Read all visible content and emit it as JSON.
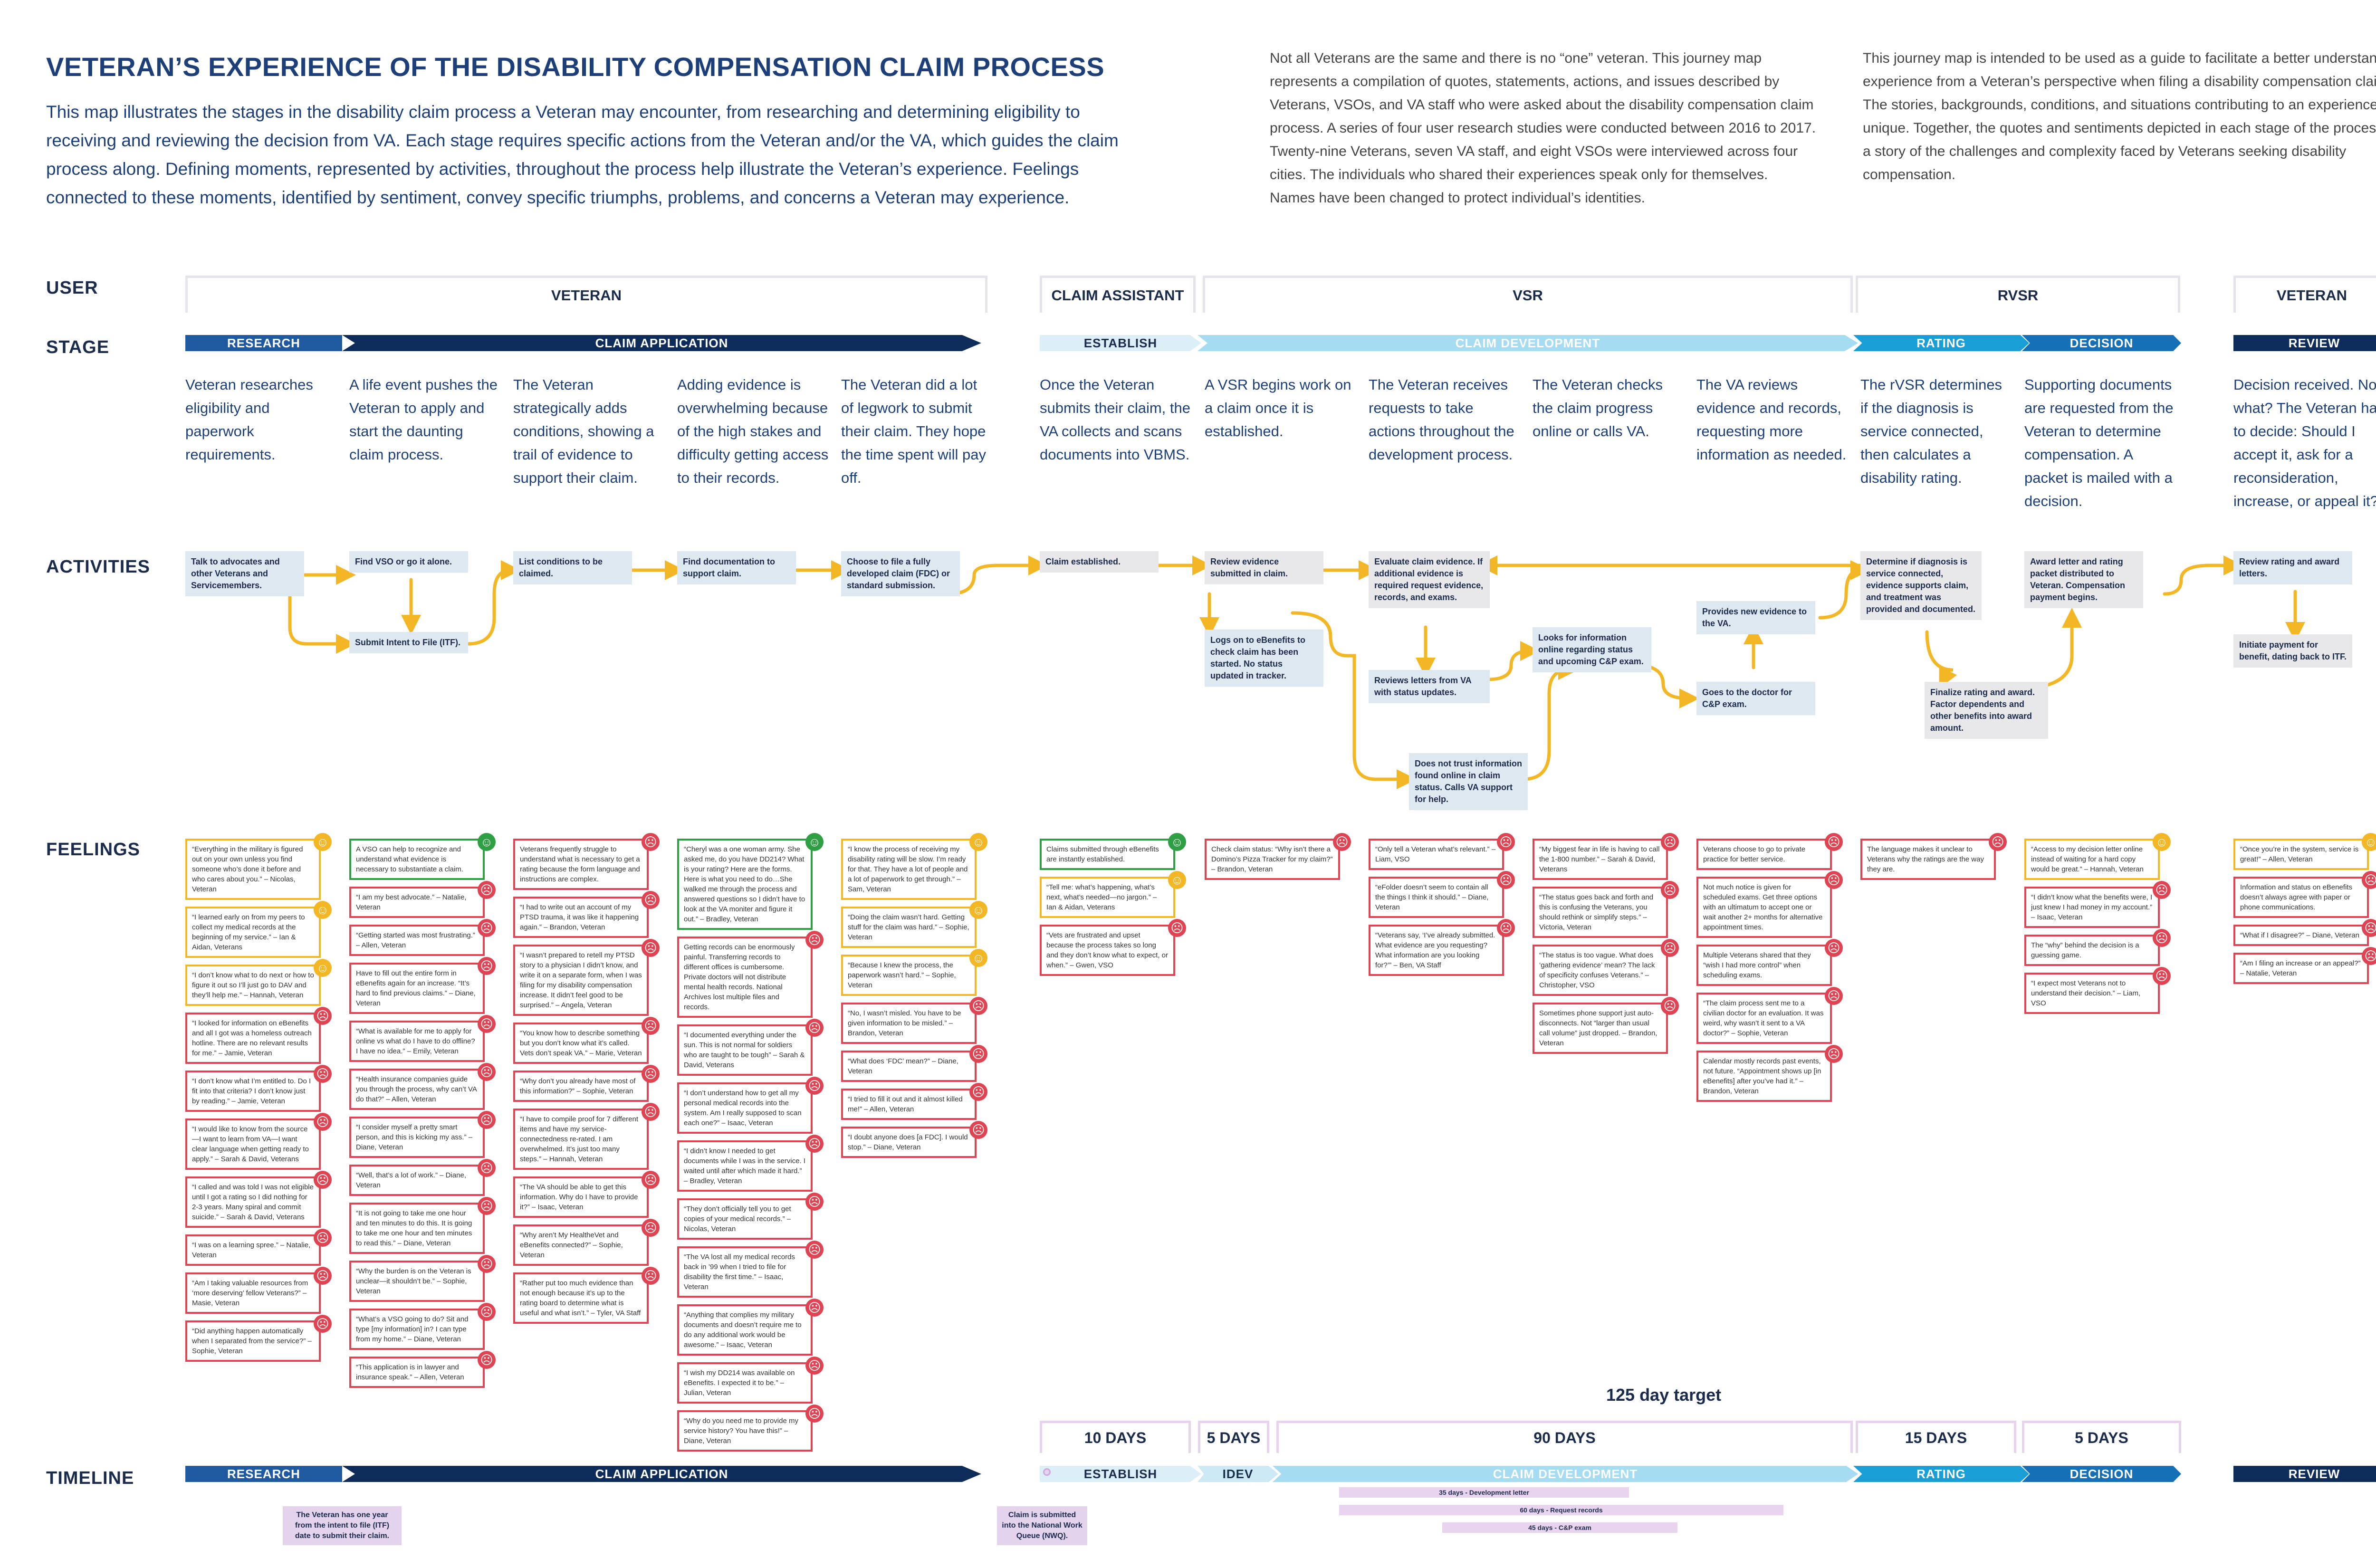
{
  "header": {
    "title": "VETERAN’S EXPERIENCE OF THE DISABILITY COMPENSATION CLAIM PROCESS",
    "intro": "This map illustrates the stages in the disability claim process a Veteran may encounter, from researching and determining eligibility to receiving and reviewing the decision from VA. Each stage requires specific actions from the Veteran and/or the VA, which guides the claim process along. Defining moments, represented by activities, throughout the process help illustrate the Veteran’s experience. Feelings connected to these moments, identified by sentiment, convey specific triumphs, problems, and concerns a Veteran may experience.",
    "note1": "Not all Veterans are the same and there is no “one” veteran. This journey map represents a compilation of quotes, statements, actions, and issues described by Veterans, VSOs, and VA staff who were asked about the disability compensation claim process. A series of four user research studies were conducted between 2016 to 2017. Twenty-nine Veterans, seven VA staff, and eight VSOs were interviewed across four cities. The individuals who shared their experiences speak only for themselves. Names have been changed to protect individual’s identities.",
    "note2": "This journey map is intended to be used as a guide to facilitate a better understand the experience from a Veteran’s perspective when filing a disability compensation claim. The stories, backgrounds, conditions, and situations contributing to an experience are unique. Together, the quotes and sentiments depicted in each stage of the process tell a story of the challenges and complexity faced by Veterans seeking disability compensation."
  },
  "rows": {
    "user": "USER",
    "stage": "STAGE",
    "activities": "ACTIVITIES",
    "feelings": "FEELINGS",
    "timeline": "TIMELINE"
  },
  "users": [
    "VETERAN",
    "CLAIM ASSISTANT",
    "VSR",
    "RVSR",
    "VETERAN"
  ],
  "stages": [
    "RESEARCH",
    "CLAIM APPLICATION",
    "ESTABLISH",
    "CLAIM DEVELOPMENT",
    "RATING",
    "DECISION",
    "REVIEW"
  ],
  "colors": {
    "navy": "#0d2c5a",
    "blue": "#1f5aa0",
    "light": "#dceef8",
    "cyan": "#a6dcf2",
    "teal": "#1a9ed6",
    "green": "#2ea043",
    "red": "#e04352",
    "yellow": "#f3b624",
    "purple": "#e3d3ec"
  },
  "steps": [
    "Veteran researches eligibility and paperwork requirements.",
    "A life event pushes the Veteran to apply and start the daunting claim process.",
    "The Veteran strategically adds conditions, showing a trail of evidence to support their claim.",
    "Adding evidence is overwhelming because of the high stakes and difficulty getting access to their records.",
    "The Veteran did a lot of legwork to submit their claim. They hope the time spent will pay off.",
    "Once the Veteran submits their claim, the VA collects and scans documents into VBMS.",
    "A VSR begins work on a claim once it is established.",
    "The Veteran receives requests to take actions throughout the development process.",
    "The Veteran checks the claim progress online or calls VA.",
    "The VA reviews evidence and records, requesting more information as needed.",
    "The rVSR determines if the diagnosis is service connected, then calculates a disability rating.",
    "Supporting documents are requested from the Veteran to determine compensation. A packet is mailed with a decision.",
    "Decision received. Now what? The Veteran has to decide: Should I accept it, ask for a reconsideration, increase, or appeal it?"
  ],
  "activities": {
    "a1": "Talk to advocates and other Veterans and Servicemembers.",
    "a2": "Find VSO or go it alone.",
    "a3": "Submit Intent to File (ITF).",
    "a4": "List conditions to be claimed.",
    "a5": "Find documentation to support claim.",
    "a6": "Choose to file a fully developed claim (FDC) or standard submission.",
    "a7": "Claim established.",
    "a8": "Review evidence submitted in claim.",
    "a9": "Logs on to eBenefits to check claim has been started. No status updated in tracker.",
    "a10": "Evaluate claim evidence. If additional evidence is required request evidence, records, and exams.",
    "a11": "Reviews letters from VA with status updates.",
    "a12": "Does not trust information found online in claim status. Calls VA support for help.",
    "a13": "Looks for information online regarding status and upcoming C&P exam.",
    "a14": "Provides new evidence to the VA.",
    "a15": "Goes to the doctor for C&P exam.",
    "a16": "Determine if diagnosis is service connected, evidence supports claim, and treatment was provided and documented.",
    "a17": "Finalize rating and award. Factor dependents and other benefits into award amount.",
    "a18": "Award letter and rating packet distributed to Veteran. Compensation payment begins.",
    "a19": "Review rating and award letters.",
    "a20": "Initiate payment for benefit, dating back to ITF."
  },
  "feelings": {
    "c1": [
      {
        "s": "neutral",
        "t": "“Everything in the military is figured out on your own unless you find someone who’s done it before and who cares about you.” – Nicolas, Veteran"
      },
      {
        "s": "neutral",
        "t": "“I learned early on from my peers to collect my medical records at the beginning of my service.” – Ian & Aidan, Veterans"
      },
      {
        "s": "neutral",
        "t": "“I don’t know what to do next or how to figure it out so I’ll just go to DAV and they’ll help me.” – Hannah, Veteran"
      },
      {
        "s": "sad",
        "t": "“I looked for information on eBenefits and all I got was a homeless outreach hotline. There are no relevant results for me.” – Jamie, Veteran"
      },
      {
        "s": "sad",
        "t": "“I don’t know what I’m entitled to. Do I fit into that criteria? I don’t know just by reading.” – Jamie, Veteran"
      },
      {
        "s": "sad",
        "t": "“I would like to know from the source—I want to learn from VA—I want clear language when getting ready to apply.” – Sarah & David, Veterans"
      },
      {
        "s": "sad",
        "t": "“I called and was told I was not eligible until I got a rating so I did nothing for 2-3 years. Many spiral and commit suicide.” – Sarah & David, Veterans"
      },
      {
        "s": "sad",
        "t": "“I was on a learning spree.” – Natalie, Veteran"
      },
      {
        "s": "sad",
        "t": "“Am I taking valuable resources from ‘more deserving’ fellow Veterans?” – Masie, Veteran"
      },
      {
        "s": "sad",
        "t": "“Did anything happen automatically when I separated from the service?” – Sophie, Veteran"
      }
    ],
    "c2": [
      {
        "s": "happy",
        "t": "A VSO can help to recognize and understand what evidence is necessary to substantiate a claim."
      },
      {
        "s": "sad",
        "t": "“I am my best advocate.” – Natalie, Veteran"
      },
      {
        "s": "sad",
        "t": "“Getting started was most frustrating.” – Allen, Veteran"
      },
      {
        "s": "sad",
        "t": "Have to fill out the entire form in eBenefits again for an increase. “It’s hard to find previous claims.” – Diane, Veteran"
      },
      {
        "s": "sad",
        "t": "“What is available for me to apply for online vs what do I have to do offline? I have no idea.” – Emily, Veteran"
      },
      {
        "s": "sad",
        "t": "“Health insurance companies guide you through the process, why can’t VA do that?” – Allen, Veteran"
      },
      {
        "s": "sad",
        "t": "“I consider myself a pretty smart person, and this is kicking my ass.” – Diane, Veteran"
      },
      {
        "s": "sad",
        "t": "“Well, that’s a lot of work.” – Diane, Veteran"
      },
      {
        "s": "sad",
        "t": "“It is not going to take me one hour and ten minutes to do this. It is going to take me one hour and ten minutes to read this.” – Diane, Veteran"
      },
      {
        "s": "sad",
        "t": "“Why the burden is on the Veteran is unclear—it shouldn’t be.” – Sophie, Veteran"
      },
      {
        "s": "sad",
        "t": "“What’s a VSO going to do? Sit and type [my information] in? I can type from my home.” – Diane, Veteran"
      },
      {
        "s": "sad",
        "t": "“This application is in lawyer and insurance speak.” – Allen, Veteran"
      }
    ],
    "c3": [
      {
        "s": "sad",
        "t": "Veterans frequently struggle to understand what is necessary to get a rating because the form language and instructions are complex."
      },
      {
        "s": "sad",
        "t": "“I had to write out an account of my PTSD trauma, it was like it happening again.” – Brandon, Veteran"
      },
      {
        "s": "sad",
        "t": "“I wasn’t prepared to retell my PTSD story to a physician I didn’t know, and write it on a separate form, when I was filing for my disability compensation increase. It didn’t feel good to be surprised.” – Angela, Veteran"
      },
      {
        "s": "sad",
        "t": "“You know how to describe something but you don’t know what it’s called. Vets don’t speak VA.” – Marie, Veteran"
      },
      {
        "s": "sad",
        "t": "“Why don’t you already have most of this information?” – Sophie, Veteran"
      },
      {
        "s": "sad",
        "t": "“I have to compile proof for 7 different items and have my service-connectedness re-rated. I am overwhelmed. It’s just too many steps.” – Hannah, Veteran"
      },
      {
        "s": "sad",
        "t": "“The VA should be able to get this information. Why do I have to provide it?” – Isaac, Veteran"
      },
      {
        "s": "sad",
        "t": "“Why aren’t My HealtheVet and eBenefits connected?” – Sophie, Veteran"
      },
      {
        "s": "sad",
        "t": "“Rather put too much evidence than not enough because it’s up to the rating board to determine what is useful and what isn’t.” – Tyler, VA Staff"
      }
    ],
    "c4": [
      {
        "s": "happy",
        "t": "“Cheryl was a one woman army. She asked me, do you have DD214? What is your rating? Here are the forms. Here is what you need to do…She walked me through the process and answered questions so I didn’t have to look at the VA moniter and figure it out.” – Bradley, Veteran"
      },
      {
        "s": "sad",
        "t": "Getting records can be enormously painful. Transferring records to different offices is cumbersome. Private doctors will not distribute mental health records. National Archives lost multiple files and records."
      },
      {
        "s": "sad",
        "t": "“I documented everything under the sun. This is not normal for soldiers who are taught to be tough” – Sarah & David, Veterans"
      },
      {
        "s": "sad",
        "t": "“I don’t understand how to get all my personal medical records into the system. Am I really supposed to scan each one?” – Isaac, Veteran"
      },
      {
        "s": "sad",
        "t": "“I didn’t know I needed to get documents while I was in the service. I waited until after which made it hard.” – Bradley, Veteran"
      },
      {
        "s": "sad",
        "t": "“They don’t officially tell you to get copies of your medical records.” – Nicolas, Veteran"
      },
      {
        "s": "sad",
        "t": "“The VA lost all my medical records back in ’99 when I tried to file for disability the first time.” – Isaac, Veteran"
      },
      {
        "s": "sad",
        "t": "“Anything that complies my military documents and doesn’t require me to do any additional work would be awesome.” – Isaac, Veteran"
      },
      {
        "s": "sad",
        "t": "“I wish my DD214 was available on eBenefits. I expected it to be.” – Julian, Veteran"
      },
      {
        "s": "sad",
        "t": "“Why do you need me to provide my service history? You have this!” – Diane, Veteran"
      }
    ],
    "c5": [
      {
        "s": "neutral",
        "t": "“I know the process of receiving my disability rating will be slow. I’m ready for that. They have a lot of people and a lot of paperwork to get through.” – Sam, Veteran"
      },
      {
        "s": "neutral",
        "t": "“Doing the claim wasn’t hard. Getting stuff for the claim was hard.” – Sophie, Veteran"
      },
      {
        "s": "neutral",
        "t": "“Because I knew the process, the paperwork wasn’t hard.” – Sophie, Veteran"
      },
      {
        "s": "sad",
        "t": "“No, I wasn’t misled. You have to be given information to be misled.” – Brandon, Veteran"
      },
      {
        "s": "sad",
        "t": "“What does ‘FDC’ mean?” – Diane, Veteran"
      },
      {
        "s": "sad",
        "t": "“I tried to fill it out and it almost killed me!” – Allen, Veteran"
      },
      {
        "s": "sad",
        "t": "“I doubt anyone does [a FDC]. I would stop.” – Diane, Veteran"
      }
    ],
    "c6": [
      {
        "s": "happy",
        "t": "Claims submitted through eBenefits are instantly established."
      },
      {
        "s": "neutral",
        "t": "“Tell me: what’s happening, what’s next, what’s needed—no jargon.” – Ian & Aidan, Veterans"
      },
      {
        "s": "sad",
        "t": "“Vets are frustrated and upset because the process takes so long and they don’t know what to expect, or when.” – Gwen, VSO"
      }
    ],
    "c7": [
      {
        "s": "sad",
        "t": "Check claim status: “Why isn’t there a Domino’s Pizza Tracker for my claim?” – Brandon, Veteran"
      }
    ],
    "c8": [
      {
        "s": "sad",
        "t": "“Only tell a Veteran what’s relevant.” – Liam, VSO"
      },
      {
        "s": "sad",
        "t": "“eFolder doesn’t seem to contain all the things I think it should.” – Diane, Veteran"
      },
      {
        "s": "sad",
        "t": "“Veterans say, ‘I’ve already submitted. What evidence are you requesting? What information are you looking for?’” – Ben, VA Staff"
      }
    ],
    "c9": [
      {
        "s": "sad",
        "t": "“My biggest fear in life is having to call the 1-800 number.” – Sarah & David, Veterans"
      },
      {
        "s": "sad",
        "t": "“The status goes back and forth and this is confusing the Veterans, you should rethink or simplify steps.” – Victoria, Veteran"
      },
      {
        "s": "sad",
        "t": "“The status is too vague. What does ‘gathering evidence’ mean? The lack of specificity confuses Veterans.” – Christopher, VSO"
      },
      {
        "s": "sad",
        "t": "Sometimes phone support just auto-disconnects. Not “larger than usual call volume” just dropped. – Brandon, Veteran"
      }
    ],
    "c10": [
      {
        "s": "sad",
        "t": "Veterans choose to go to private practice for better service."
      },
      {
        "s": "sad",
        "t": "Not much notice is given for scheduled exams. Get three options with an ultimatum to accept one or wait another 2+ months for alternative appointment times."
      },
      {
        "s": "sad",
        "t": "Multiple Veterans shared that they “wish I had more control” when scheduling exams."
      },
      {
        "s": "sad",
        "t": "“The claim process sent me to a civilian doctor for an evaluation. It was weird, why wasn’t it sent to a VA doctor?” – Sophie, Veteran"
      },
      {
        "s": "sad",
        "t": "Calendar mostly records past events, not future. “Appointment shows up [in eBenefits] after you’ve had it.” – Brandon, Veteran"
      }
    ],
    "c11": [
      {
        "s": "sad",
        "t": "The language makes it unclear to Veterans why the ratings are the way they are."
      }
    ],
    "c12": [
      {
        "s": "neutral",
        "t": "“Access to my decision letter online instead of waiting for a hard copy would be great.” – Hannah, Veteran"
      },
      {
        "s": "sad",
        "t": "“I didn’t know what the benefits were, I just knew I had money in my account.” – Isaac, Veteran"
      },
      {
        "s": "sad",
        "t": "The “why” behind the decision is a guessing game."
      },
      {
        "s": "sad",
        "t": "“I expect most Veterans not to understand their decision.” – Liam, VSO"
      }
    ],
    "c13": [
      {
        "s": "neutral",
        "t": "“Once you’re in the system, service is great!” – Allen, Veteran"
      },
      {
        "s": "sad",
        "t": "Information and status on eBenefits doesn’t always agree with paper or phone communications."
      },
      {
        "s": "sad",
        "t": "“What if I disagree?” – Diane, Veteran"
      },
      {
        "s": "sad",
        "t": "“Am I filing an increase or an appeal?” – Natalie, Veteran"
      }
    ]
  },
  "timeline": {
    "target": "125 day target",
    "durations": [
      "10 DAYS",
      "5 DAYS",
      "90 DAYS",
      "15 DAYS",
      "5 DAYS"
    ],
    "stages": [
      "RESEARCH",
      "CLAIM APPLICATION",
      "ESTABLISH",
      "IDEV",
      "CLAIM DEVELOPMENT",
      "RATING",
      "DECISION",
      "REVIEW"
    ],
    "note1": "The Veteran has one year from the intent to file (ITF) date to submit their claim.",
    "note2": "Claim is submitted into the National Work Queue (NWQ).",
    "bars": [
      "35 days - Development letter",
      "60 days - Request records",
      "45 days - C&P exam"
    ]
  }
}
